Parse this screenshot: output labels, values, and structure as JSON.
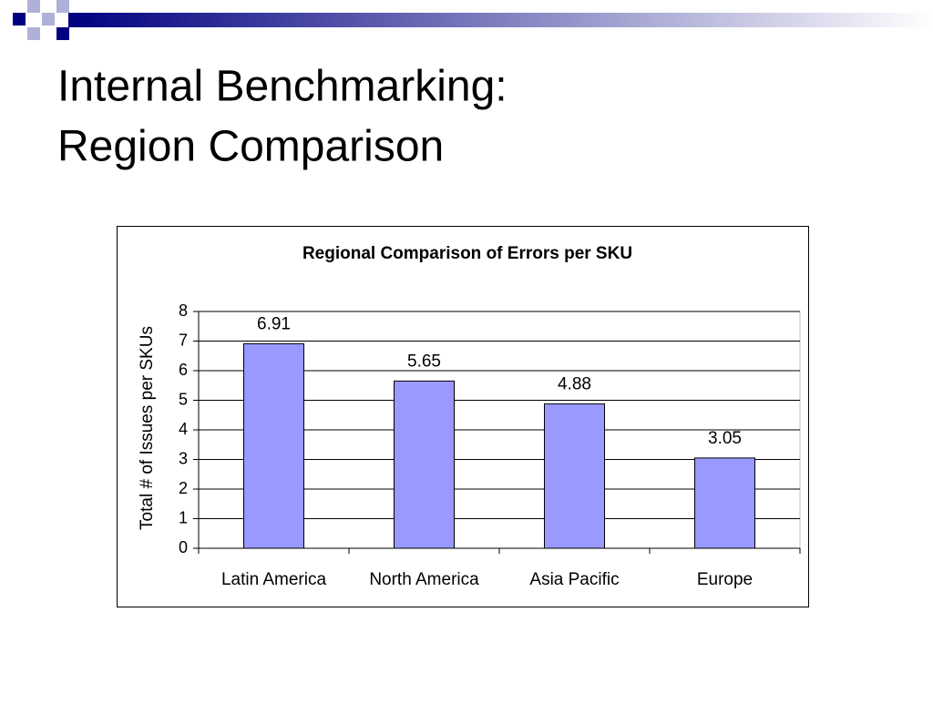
{
  "slide": {
    "title": [
      "Internal Benchmarking:",
      "Region Comparison"
    ]
  },
  "chart_data": {
    "type": "bar",
    "title": "Regional Comparison of Errors per SKU",
    "y_label": "Total # of Issues per SKUs",
    "categories": [
      "Latin America",
      "North America",
      "Asia Pacific",
      "Europe"
    ],
    "values": [
      6.91,
      5.65,
      4.88,
      3.05
    ],
    "color": "#9999ff",
    "ylim": [
      0,
      8
    ],
    "yticks": [
      0,
      1,
      2,
      3,
      4,
      5,
      6,
      7,
      8
    ],
    "grid": true
  }
}
